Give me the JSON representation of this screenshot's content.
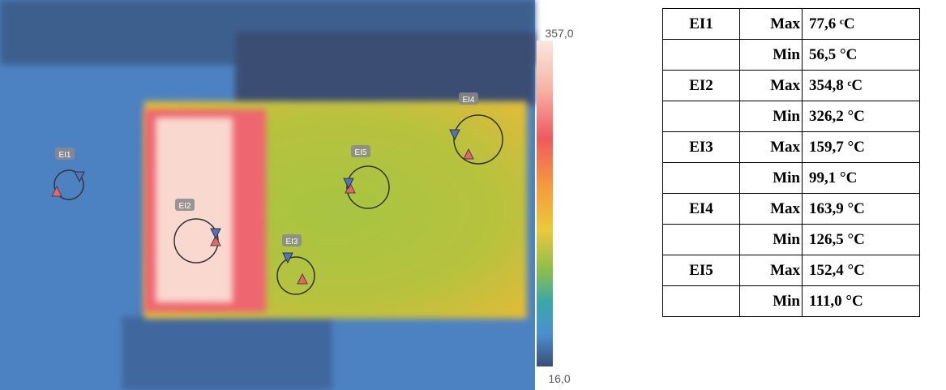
{
  "thermal_image": {
    "scale_max": "357,0",
    "scale_min": "16,0",
    "markers": [
      "EI1",
      "EI2",
      "EI3",
      "EI4",
      "EI5"
    ]
  },
  "table": {
    "groups": [
      {
        "name": "EI1",
        "rows": [
          [
            "Max",
            "77,6 ᶜC"
          ],
          [
            "Min",
            "56,5 °C"
          ]
        ]
      },
      {
        "name": "EI2",
        "rows": [
          [
            "Max",
            "354,8 ᶜC"
          ],
          [
            "Min",
            "326,2 °C"
          ]
        ]
      },
      {
        "name": "EI3",
        "rows": [
          [
            "Max",
            "159,7 °C"
          ],
          [
            "Min",
            "99,1 °C"
          ]
        ]
      },
      {
        "name": "EI4",
        "rows": [
          [
            "Max",
            "163,9 °C"
          ],
          [
            "Min",
            "126,5 °C"
          ]
        ]
      },
      {
        "name": "EI5",
        "rows": [
          [
            "Max",
            "152,4 °C"
          ],
          [
            "Min",
            "111,0 °C"
          ]
        ]
      }
    ]
  }
}
